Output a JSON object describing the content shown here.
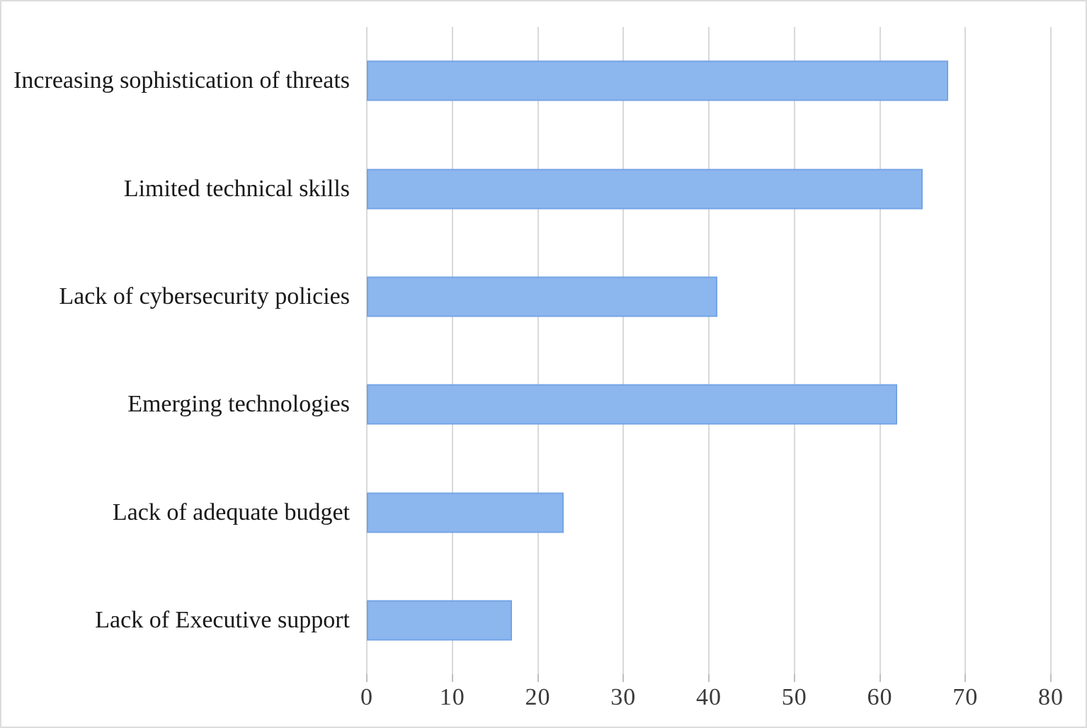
{
  "chart_data": {
    "type": "bar",
    "orientation": "horizontal",
    "title": "",
    "xlabel": "",
    "ylabel": "",
    "categories": [
      "Increasing sophistication of threats",
      "Limited technical skills",
      "Lack of cybersecurity policies",
      "Emerging technologies",
      "Lack of adequate budget",
      "Lack of Executive support"
    ],
    "values": [
      68,
      65,
      41,
      62,
      23,
      17
    ],
    "xlim": [
      0,
      80
    ],
    "xticks": [
      0,
      10,
      20,
      30,
      40,
      50,
      60,
      70,
      80
    ],
    "grid": true,
    "legend": false,
    "colors": {
      "bar_fill": "#8cb6ee",
      "bar_border": "#74a4e6",
      "gridline": "#d9d9d9",
      "tick": "#bfbfbf",
      "tick_text": "#3b3b3b",
      "label_text": "#191919",
      "background": "#ffffff"
    }
  }
}
